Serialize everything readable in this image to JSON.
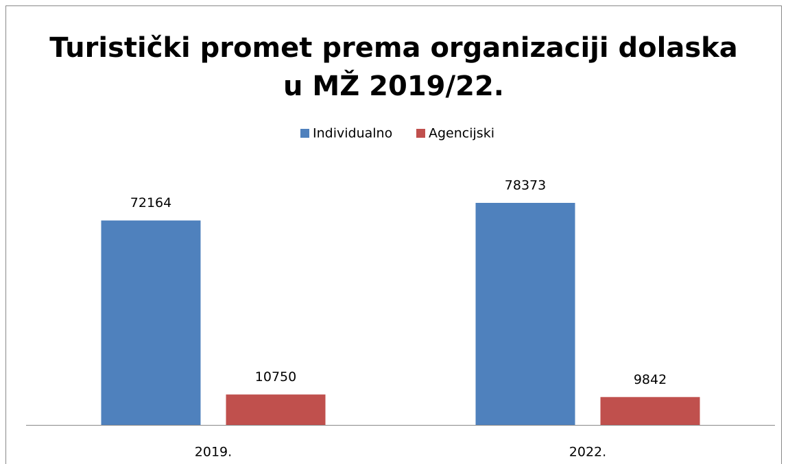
{
  "chart_data": {
    "type": "bar",
    "title": [
      "Turistički promet prema organizaciji dolaska",
      "u MŽ 2019/22."
    ],
    "categories": [
      "2019.",
      "2022."
    ],
    "series": [
      {
        "name": "Individualno",
        "color": "#4f81bd",
        "values": [
          72164,
          78373
        ]
      },
      {
        "name": "Agencijski",
        "color": "#c0504d",
        "values": [
          10750,
          9842
        ]
      }
    ],
    "legend": "top"
  }
}
